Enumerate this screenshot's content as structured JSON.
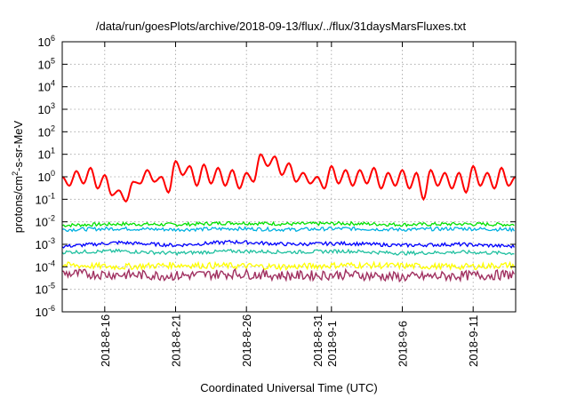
{
  "chart_data": {
    "type": "line",
    "title": "/data/run/goesPlots/archive/2018-09-13/flux/../flux/31daysMarsFluxes.txt",
    "xlabel": "Coordinated Universal Time (UTC)",
    "ylabel_parts": {
      "base": "protons/cm",
      "sup": "2",
      "rest": "-s-sr-MeV"
    },
    "yscale": "log",
    "ylim": [
      1e-06,
      1000000.0
    ],
    "xlim": [
      "2018-08-13",
      "2018-09-14"
    ],
    "grid": true,
    "y_ticks": [
      {
        "value": 1e-06,
        "base": "10",
        "exp": "-6"
      },
      {
        "value": 1e-05,
        "base": "10",
        "exp": "-5"
      },
      {
        "value": 0.0001,
        "base": "10",
        "exp": "-4"
      },
      {
        "value": 0.001,
        "base": "10",
        "exp": "-3"
      },
      {
        "value": 0.01,
        "base": "10",
        "exp": "-2"
      },
      {
        "value": 0.1,
        "base": "10",
        "exp": "-1"
      },
      {
        "value": 1,
        "base": "10",
        "exp": "0"
      },
      {
        "value": 10.0,
        "base": "10",
        "exp": "1"
      },
      {
        "value": 100.0,
        "base": "10",
        "exp": "2"
      },
      {
        "value": 1000.0,
        "base": "10",
        "exp": "3"
      },
      {
        "value": 10000.0,
        "base": "10",
        "exp": "4"
      },
      {
        "value": 100000.0,
        "base": "10",
        "exp": "5"
      },
      {
        "value": 1000000.0,
        "base": "10",
        "exp": "6"
      }
    ],
    "x_ticks": [
      {
        "date": "2018-08-16",
        "label": "2018-8-16"
      },
      {
        "date": "2018-08-21",
        "label": "2018-8-21"
      },
      {
        "date": "2018-08-26",
        "label": "2018-8-26"
      },
      {
        "date": "2018-08-31",
        "label": "2018-8-31"
      },
      {
        "date": "2018-09-01",
        "label": "2018-9-1"
      },
      {
        "date": "2018-09-06",
        "label": "2018-9-6"
      },
      {
        "date": "2018-09-11",
        "label": "2018-9-11"
      }
    ],
    "series": [
      {
        "color": "#ff0000",
        "dates": [
          "2018-08-13",
          "2018-08-13.5",
          "2018-08-14",
          "2018-08-14.5",
          "2018-08-15",
          "2018-08-15.5",
          "2018-08-16",
          "2018-08-16.5",
          "2018-08-17",
          "2018-08-17.5",
          "2018-08-18",
          "2018-08-18.5",
          "2018-08-19",
          "2018-08-19.5",
          "2018-08-20",
          "2018-08-20.5",
          "2018-08-21",
          "2018-08-21.5",
          "2018-08-22",
          "2018-08-22.5",
          "2018-08-23",
          "2018-08-23.5",
          "2018-08-24",
          "2018-08-24.5",
          "2018-08-25",
          "2018-08-25.5",
          "2018-08-26",
          "2018-08-26.5",
          "2018-08-27",
          "2018-08-27.5",
          "2018-08-28",
          "2018-08-28.5",
          "2018-08-29",
          "2018-08-29.5",
          "2018-08-30",
          "2018-08-30.5",
          "2018-08-31",
          "2018-08-31.5",
          "2018-09-01",
          "2018-09-01.5",
          "2018-09-02",
          "2018-09-02.5",
          "2018-09-03",
          "2018-09-03.5",
          "2018-09-04",
          "2018-09-04.5",
          "2018-09-05",
          "2018-09-05.5",
          "2018-09-06",
          "2018-09-06.5",
          "2018-09-07",
          "2018-09-07.5",
          "2018-09-08",
          "2018-09-08.5",
          "2018-09-09",
          "2018-09-09.5",
          "2018-09-10",
          "2018-09-10.5",
          "2018-09-11",
          "2018-09-11.5",
          "2018-09-12",
          "2018-09-12.5",
          "2018-09-13",
          "2018-09-13.5",
          "2018-09-14"
        ],
        "values": [
          1.0,
          0.4,
          1.8,
          0.5,
          2.5,
          0.3,
          1.2,
          0.15,
          0.25,
          0.08,
          0.6,
          0.5,
          2.0,
          0.6,
          1.0,
          0.2,
          5.0,
          1.2,
          3.0,
          0.4,
          3.5,
          0.5,
          2.5,
          0.4,
          2.0,
          0.3,
          1.5,
          0.6,
          10.0,
          3.0,
          8.0,
          1.2,
          4.0,
          0.6,
          1.5,
          0.5,
          1.0,
          0.3,
          3.0,
          0.5,
          2.0,
          0.4,
          2.0,
          0.5,
          2.5,
          0.3,
          1.5,
          0.4,
          2.0,
          0.3,
          1.5,
          0.1,
          2.0,
          0.4,
          1.5,
          0.3,
          1.5,
          0.2,
          3.0,
          0.4,
          1.5,
          0.3,
          2.5,
          0.4,
          1.0
        ]
      },
      {
        "color": "#00e000",
        "dates": [
          "2018-08-13",
          "2018-08-17",
          "2018-08-21",
          "2018-08-25",
          "2018-08-29",
          "2018-09-02",
          "2018-09-06",
          "2018-09-10",
          "2018-09-14"
        ],
        "values": [
          0.007,
          0.008,
          0.0075,
          0.009,
          0.008,
          0.0085,
          0.0075,
          0.008,
          0.0075
        ]
      },
      {
        "color": "#00b0e0",
        "dates": [
          "2018-08-13",
          "2018-08-17",
          "2018-08-21",
          "2018-08-25",
          "2018-08-29",
          "2018-09-02",
          "2018-09-06",
          "2018-09-10",
          "2018-09-14"
        ],
        "values": [
          0.0045,
          0.005,
          0.0045,
          0.005,
          0.0045,
          0.005,
          0.0045,
          0.005,
          0.0045
        ]
      },
      {
        "color": "#0000ff",
        "dates": [
          "2018-08-13",
          "2018-08-17",
          "2018-08-21",
          "2018-08-25",
          "2018-08-29",
          "2018-09-02",
          "2018-09-06",
          "2018-09-10",
          "2018-09-14"
        ],
        "values": [
          0.0008,
          0.0012,
          0.0009,
          0.0013,
          0.001,
          0.0011,
          0.0009,
          0.001,
          0.0008
        ]
      },
      {
        "color": "#20c0a0",
        "dates": [
          "2018-08-13",
          "2018-08-17",
          "2018-08-21",
          "2018-08-25",
          "2018-08-29",
          "2018-09-02",
          "2018-09-06",
          "2018-09-10",
          "2018-09-14"
        ],
        "values": [
          0.00045,
          0.0005,
          0.0004,
          0.0005,
          0.00045,
          0.0005,
          0.0004,
          0.00045,
          0.0004
        ]
      },
      {
        "color": "#ffff00",
        "dates": [
          "2018-08-13",
          "2018-08-17",
          "2018-08-21",
          "2018-08-25",
          "2018-08-29",
          "2018-09-02",
          "2018-09-06",
          "2018-09-10",
          "2018-09-14"
        ],
        "values": [
          0.00012,
          0.0001,
          0.00012,
          0.00011,
          0.0001,
          0.00012,
          0.00011,
          0.0001,
          0.00012
        ]
      },
      {
        "color": "#a03060",
        "dates": [
          "2018-08-13",
          "2018-08-17",
          "2018-08-21",
          "2018-08-25",
          "2018-08-29",
          "2018-09-02",
          "2018-09-06",
          "2018-09-10",
          "2018-09-14"
        ],
        "values": [
          5e-05,
          4.5e-05,
          4e-05,
          5e-05,
          4e-05,
          4.5e-05,
          3.5e-05,
          4e-05,
          4.5e-05
        ]
      }
    ]
  }
}
